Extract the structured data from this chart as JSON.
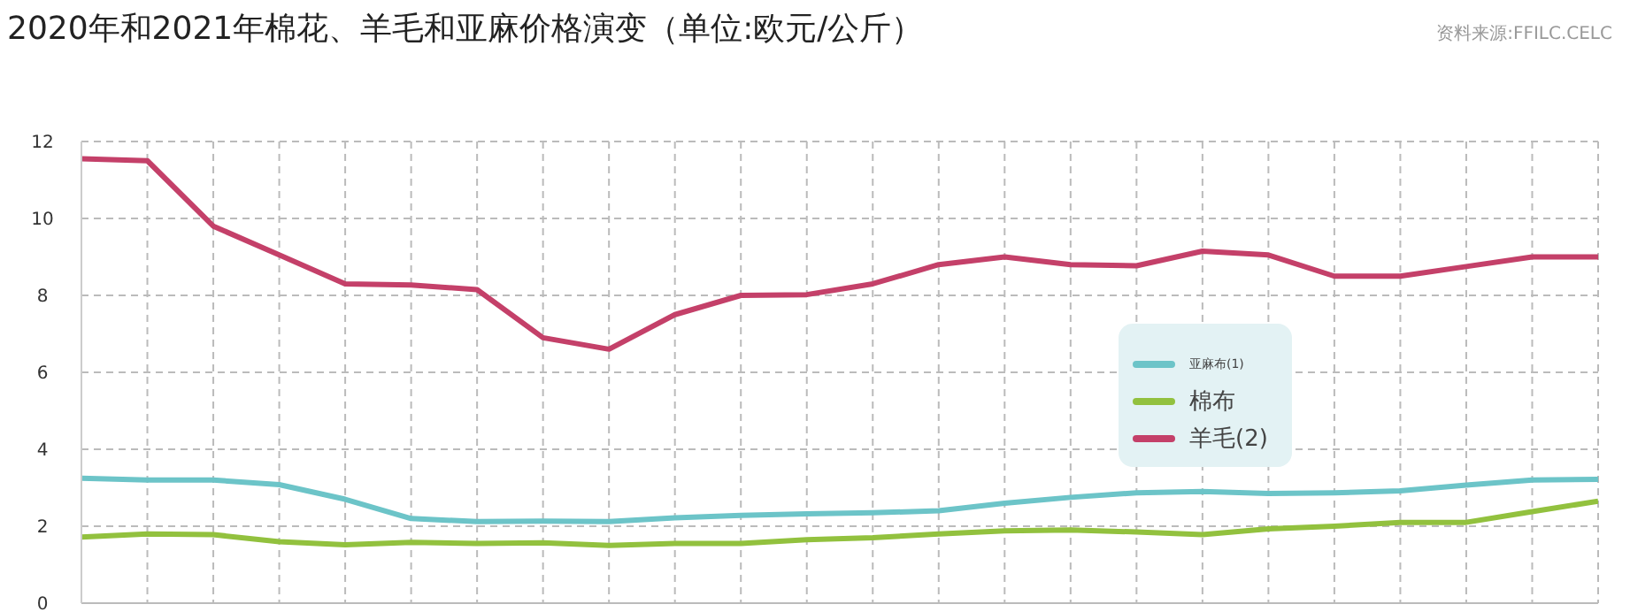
{
  "chart_data": {
    "type": "line",
    "title": "2020年和2021年棉花、羊毛和亚麻价格演变（单位:欧元/公斤）",
    "annotations": [
      "资料来源:FFILC.CELC"
    ],
    "categories": [
      null,
      null,
      null,
      null,
      null,
      null,
      null,
      null,
      null,
      null,
      null,
      null,
      null,
      null,
      null,
      null,
      null,
      null,
      null,
      null,
      null,
      null,
      null,
      null
    ],
    "series": [
      {
        "name": "亚麻布(1)",
        "color": "#6cc4c8",
        "values": [
          3.25,
          3.2,
          3.2,
          3.08,
          2.7,
          2.2,
          2.12,
          2.13,
          2.12,
          2.22,
          2.28,
          2.32,
          2.35,
          2.4,
          2.6,
          2.75,
          2.87,
          2.9,
          2.85,
          2.87,
          2.92,
          3.07,
          3.2,
          3.22
        ]
      },
      {
        "name": "棉布",
        "color": "#92c13e",
        "values": [
          1.72,
          1.8,
          1.78,
          1.6,
          1.52,
          1.58,
          1.55,
          1.57,
          1.5,
          1.55,
          1.55,
          1.65,
          1.7,
          1.8,
          1.88,
          1.9,
          1.85,
          1.78,
          1.93,
          2.0,
          2.1,
          2.1,
          2.38,
          2.65
        ]
      },
      {
        "name": "羊毛(2)",
        "color": "#c44069",
        "values": [
          11.55,
          11.5,
          9.8,
          9.05,
          8.3,
          8.27,
          8.15,
          6.9,
          6.6,
          7.5,
          8.0,
          8.02,
          8.3,
          8.8,
          9.0,
          8.8,
          8.77,
          9.15,
          9.05,
          8.5,
          8.5,
          8.75,
          9.0,
          9.0
        ]
      }
    ],
    "ylim": [
      0,
      12
    ],
    "yticks": [
      0,
      2,
      4,
      6,
      8,
      10,
      12
    ],
    "grid": true,
    "legend": "right",
    "marker": "none",
    "line_style": "solid"
  }
}
